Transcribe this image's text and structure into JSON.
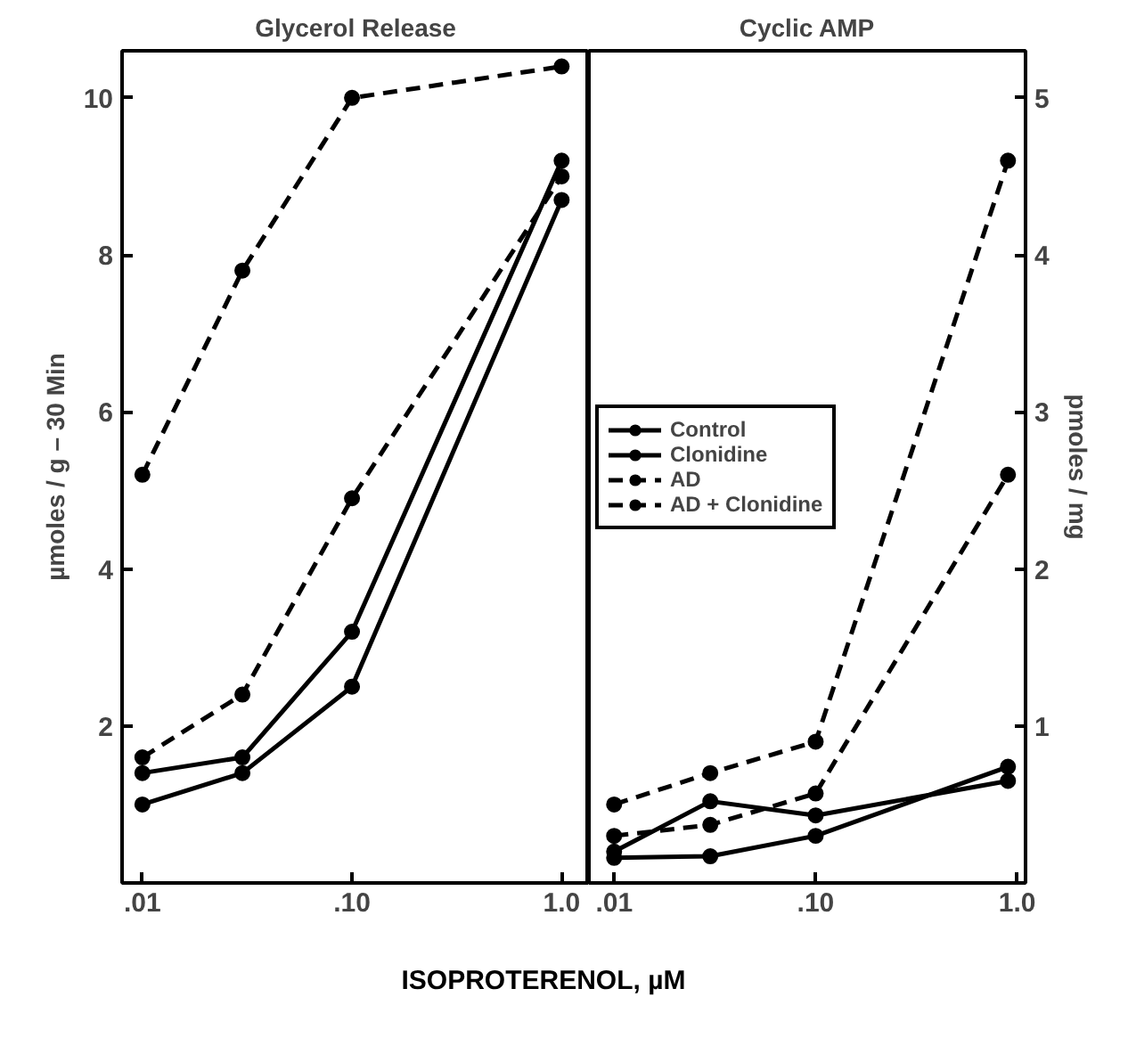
{
  "chart_data": [
    {
      "type": "line",
      "title": "Glycerol Release",
      "xlabel": "ISOPROTERENOL, µM",
      "ylabel": "µmoles / g – 30 Min",
      "log": "x",
      "xlim": [
        0.008,
        1.35
      ],
      "xticks": [
        {
          "value": 0.01,
          "label": ".01"
        },
        {
          "value": 0.1,
          "label": ".10"
        },
        {
          "value": 1.0,
          "label": "1.0"
        }
      ],
      "ylim": [
        0,
        10.6
      ],
      "yticks": [
        2,
        4,
        6,
        8,
        10
      ],
      "marker": "circle",
      "grid": false,
      "x": [
        0.01,
        0.03,
        0.1,
        1.0
      ],
      "series": [
        {
          "color": "#000000",
          "line_style": "solid",
          "values": [
            1.4,
            1.6,
            3.2,
            9.2
          ]
        },
        {
          "color": "#000000",
          "line_style": "solid",
          "values": [
            1.0,
            1.4,
            2.5,
            8.7
          ]
        },
        {
          "color": "#000000",
          "line_style": "dashed",
          "values": [
            5.2,
            7.8,
            10.0,
            10.4
          ]
        },
        {
          "color": "#000000",
          "line_style": "dashed",
          "values": [
            1.6,
            2.4,
            4.9,
            9.0
          ]
        }
      ]
    },
    {
      "type": "line",
      "title": "Cyclic AMP",
      "y2label": "pmoles / mg",
      "log": "x",
      "xlim": [
        0.0075,
        1.1
      ],
      "xticks": [
        {
          "value": 0.01,
          "label": ".01"
        },
        {
          "value": 0.1,
          "label": ".10"
        },
        {
          "value": 1.0,
          "label": "1.0"
        }
      ],
      "y2lim": [
        0,
        5.3
      ],
      "y2ticks": [
        1,
        2,
        3,
        4,
        5
      ],
      "marker": "circle",
      "grid": false,
      "legend": "left",
      "x": [
        0.01,
        0.03,
        0.1,
        0.9
      ],
      "series": [
        {
          "name": "Control",
          "color": "#000000",
          "line_style": "solid",
          "axis": "y2",
          "values": [
            0.2,
            0.52,
            0.43,
            0.65
          ]
        },
        {
          "name": "Clonidine",
          "color": "#000000",
          "line_style": "solid",
          "axis": "y2",
          "values": [
            0.16,
            0.17,
            0.3,
            0.74
          ]
        },
        {
          "name": "AD",
          "color": "#000000",
          "line_style": "dashed",
          "axis": "y2",
          "values": [
            0.5,
            0.7,
            0.9,
            4.6
          ]
        },
        {
          "name": "AD + Clonidine",
          "color": "#000000",
          "line_style": "dashed",
          "axis": "y2",
          "values": [
            0.3,
            0.37,
            0.57,
            2.6
          ]
        }
      ]
    }
  ]
}
